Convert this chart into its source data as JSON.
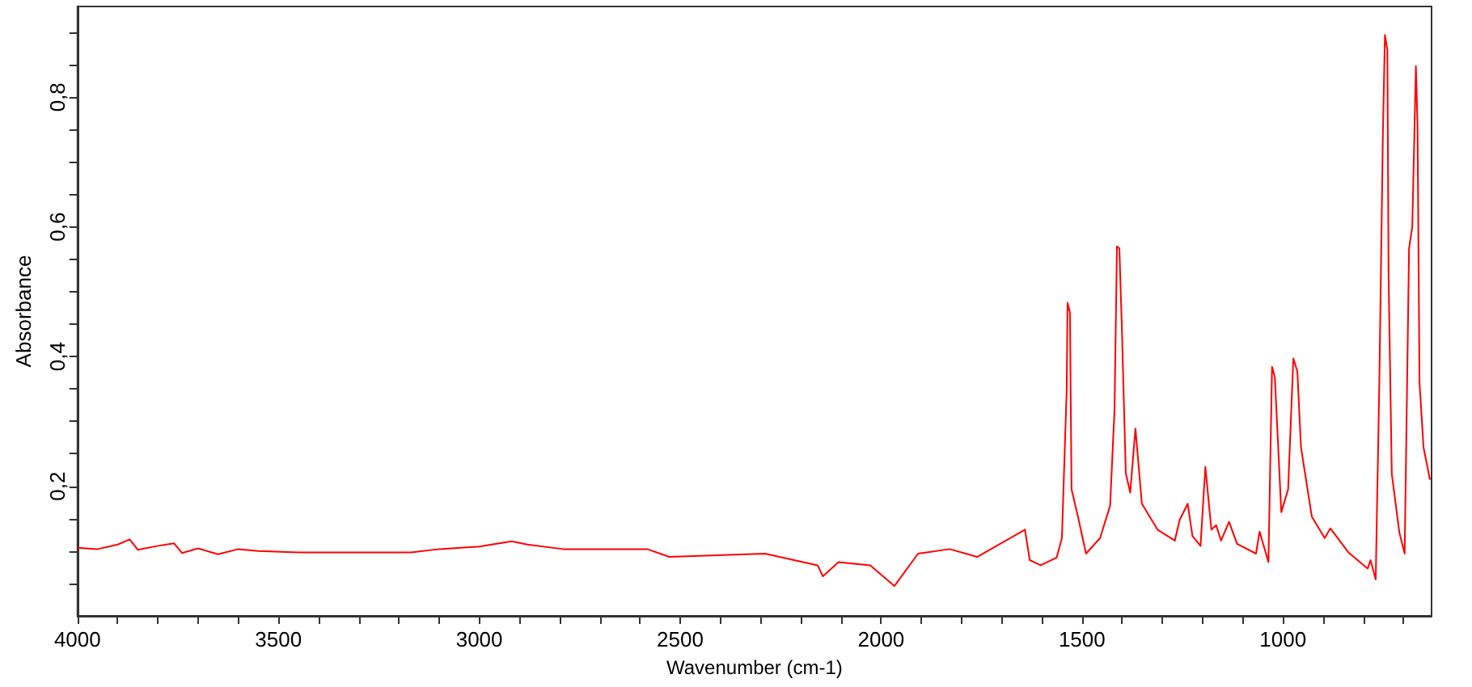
{
  "chart_data": {
    "type": "line",
    "xlabel": "Wavenumber (cm-1)",
    "ylabel": "Absorbance",
    "xlim": [
      4000,
      630
    ],
    "ylim": [
      0,
      0.94
    ],
    "xticks": [
      4000,
      {
        "value": 3900,
        "label": null
      },
      {
        "value": 3800,
        "label": null
      },
      {
        "value": 3700,
        "label": null
      },
      {
        "value": 3600,
        "label": null
      },
      3500,
      {
        "value": 3400,
        "label": null
      },
      {
        "value": 3300,
        "label": null
      },
      {
        "value": 3200,
        "label": null
      },
      {
        "value": 3100,
        "label": null
      },
      3000,
      {
        "value": 2900,
        "label": null
      },
      {
        "value": 2800,
        "label": null
      },
      {
        "value": 2700,
        "label": null
      },
      {
        "value": 2600,
        "label": null
      },
      2500,
      {
        "value": 2400,
        "label": null
      },
      {
        "value": 2300,
        "label": null
      },
      {
        "value": 2200,
        "label": null
      },
      {
        "value": 2100,
        "label": null
      },
      2000,
      {
        "value": 1900,
        "label": null
      },
      {
        "value": 1800,
        "label": null
      },
      {
        "value": 1700,
        "label": null
      },
      {
        "value": 1600,
        "label": null
      },
      1500,
      {
        "value": 1400,
        "label": null
      },
      {
        "value": 1300,
        "label": null
      },
      {
        "value": 1200,
        "label": null
      },
      {
        "value": 1100,
        "label": null
      },
      1000,
      {
        "value": 900,
        "label": null
      },
      {
        "value": 800,
        "label": null
      },
      {
        "value": 700,
        "label": null
      }
    ],
    "yticks": [
      {
        "value": 0.05,
        "label": null
      },
      {
        "value": 0.1,
        "label": null
      },
      {
        "value": 0.15,
        "label": null
      },
      {
        "value": 0.2,
        "label": "0,2"
      },
      {
        "value": 0.25,
        "label": null
      },
      {
        "value": 0.3,
        "label": null
      },
      {
        "value": 0.35,
        "label": null
      },
      {
        "value": 0.4,
        "label": "0,4"
      },
      {
        "value": 0.45,
        "label": null
      },
      {
        "value": 0.5,
        "label": null
      },
      {
        "value": 0.55,
        "label": null
      },
      {
        "value": 0.6,
        "label": "0,6"
      },
      {
        "value": 0.65,
        "label": null
      },
      {
        "value": 0.7,
        "label": null
      },
      {
        "value": 0.75,
        "label": null
      },
      {
        "value": 0.8,
        "label": "0,8"
      },
      {
        "value": 0.85,
        "label": null
      },
      {
        "value": 0.9,
        "label": null
      }
    ],
    "marker": "none",
    "line_style": "solid",
    "series": [
      {
        "color": "#ff0000",
        "x": [
          4000,
          3950,
          3900,
          3870,
          3850,
          3800,
          3760,
          3740,
          3700,
          3650,
          3600,
          3550,
          3450,
          3170,
          3100,
          3000,
          2920,
          2880,
          2792,
          2582,
          2527,
          2289,
          2158,
          2145,
          2106,
          2027,
          1967,
          1908,
          1829,
          1761,
          1642,
          1630,
          1603,
          1563,
          1550,
          1538,
          1536,
          1530,
          1526,
          1510,
          1490,
          1455,
          1430,
          1419,
          1413,
          1407,
          1401,
          1391,
          1380,
          1367,
          1351,
          1312,
          1269,
          1257,
          1237,
          1225,
          1205,
          1193,
          1178,
          1166,
          1154,
          1134,
          1114,
          1067,
          1058,
          1036,
          1027,
          1020,
          1004,
          987,
          974,
          964,
          955,
          928,
          896,
          882,
          837,
          789,
          782,
          769,
          760,
          751,
          746,
          740,
          737,
          729,
          710,
          697,
          686,
          678,
          669,
          665,
          660,
          650,
          634
        ],
        "values": [
          0.105,
          0.103,
          0.11,
          0.118,
          0.102,
          0.108,
          0.112,
          0.097,
          0.104,
          0.095,
          0.103,
          0.1,
          0.098,
          0.098,
          0.103,
          0.107,
          0.115,
          0.11,
          0.103,
          0.103,
          0.091,
          0.096,
          0.078,
          0.061,
          0.083,
          0.078,
          0.046,
          0.096,
          0.103,
          0.091,
          0.133,
          0.086,
          0.078,
          0.09,
          0.12,
          0.35,
          0.483,
          0.468,
          0.195,
          0.153,
          0.096,
          0.12,
          0.17,
          0.319,
          0.57,
          0.567,
          0.45,
          0.22,
          0.19,
          0.289,
          0.173,
          0.133,
          0.116,
          0.148,
          0.173,
          0.123,
          0.108,
          0.23,
          0.133,
          0.14,
          0.116,
          0.145,
          0.111,
          0.096,
          0.13,
          0.083,
          0.384,
          0.368,
          0.16,
          0.195,
          0.397,
          0.377,
          0.26,
          0.153,
          0.12,
          0.135,
          0.098,
          0.073,
          0.086,
          0.056,
          0.36,
          0.749,
          0.896,
          0.873,
          0.525,
          0.219,
          0.128,
          0.096,
          0.567,
          0.6,
          0.848,
          0.757,
          0.36,
          0.26,
          0.21
        ]
      }
    ]
  }
}
